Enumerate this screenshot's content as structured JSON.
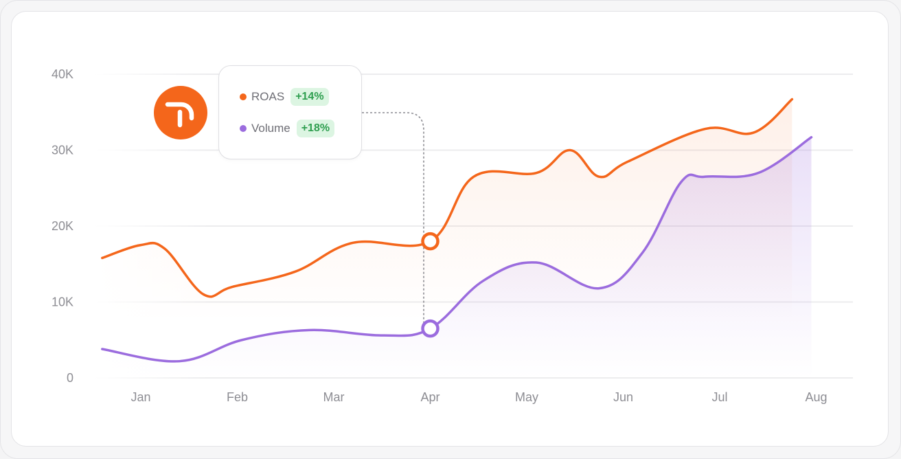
{
  "chart_data": {
    "type": "line",
    "title": "",
    "xlabel": "",
    "ylabel": "",
    "categories": [
      "Jan",
      "Feb",
      "Mar",
      "Apr",
      "May",
      "Jun",
      "Jul",
      "Aug"
    ],
    "y_ticks": [
      "0",
      "10K",
      "20K",
      "30K",
      "40K"
    ],
    "ylim": [
      0,
      40000
    ],
    "grid": true,
    "highlight_index": 3,
    "series": [
      {
        "name": "ROAS",
        "color": "#f4661b",
        "change": "+14%",
        "x": [
          -0.4,
          0.0,
          0.25,
          0.65,
          0.95,
          1.6,
          2.2,
          3.0,
          3.45,
          4.1,
          4.45,
          4.75,
          5.05,
          5.85,
          6.35,
          6.75
        ],
        "values": [
          15800,
          17500,
          17000,
          11000,
          12000,
          14000,
          17800,
          18000,
          26500,
          27000,
          30000,
          26500,
          28500,
          32800,
          32300,
          36700
        ]
      },
      {
        "name": "Volume",
        "color": "#9b6cde",
        "change": "+18%",
        "x": [
          -0.4,
          0.4,
          1.05,
          1.75,
          2.5,
          3.0,
          3.55,
          4.1,
          4.75,
          5.2,
          5.6,
          5.85,
          6.4,
          6.95
        ],
        "values": [
          3800,
          2200,
          5000,
          6300,
          5600,
          6500,
          12800,
          15200,
          11800,
          16500,
          25800,
          26500,
          27000,
          31700
        ]
      }
    ]
  },
  "legend": {
    "items": [
      {
        "label": "ROAS",
        "change": "+14%",
        "color": "#f4661b"
      },
      {
        "label": "Volume",
        "change": "+18%",
        "color": "#9b6cde"
      }
    ]
  },
  "logo": {
    "icon": "brand-logo-icon",
    "color": "#f4661b"
  }
}
